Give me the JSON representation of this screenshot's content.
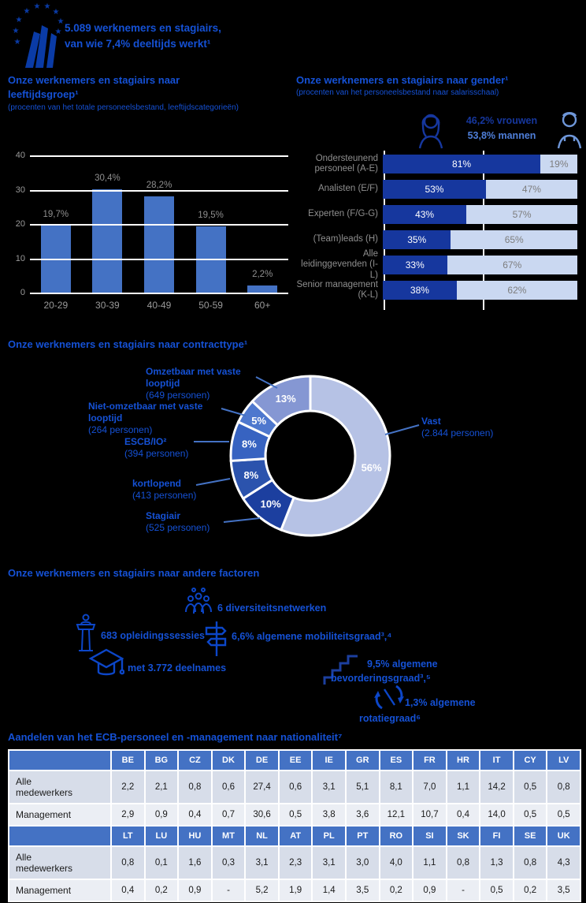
{
  "colors": {
    "accent_blue": "#1551D5",
    "bar_blue": "#4472C4",
    "dark_navy": "#16379E",
    "light_blue": "#CAD8F1",
    "icon_blue": "#0C46C8",
    "gray_label": "#8F8F8F",
    "table_header": "#4472C4"
  },
  "header": {
    "line1": "5.089 werknemers en stagiairs,",
    "line2": "van wie 7,4% deeltijds werkt¹"
  },
  "sections": {
    "age": {
      "title": "Onze werknemers en stagiairs naar leeftijdsgroep¹",
      "subtitle": "(procenten van het totale personeelsbestand, leeftijdscategorieën)"
    },
    "gender": {
      "title": "Onze werknemers en stagiairs naar gender¹",
      "subtitle": "(procenten van het personeelsbestand naar salarisschaal)",
      "women_total": "46,2% vrouwen",
      "men_total": "53,8% mannen"
    },
    "contract": {
      "title": "Onze werknemers en stagiairs naar contracttype¹"
    },
    "factors": {
      "title": "Onze werknemers en stagiairs naar andere factoren",
      "items": [
        {
          "id": "diversiteit",
          "text": "6 diversiteitsnetwerken"
        },
        {
          "id": "opleiding",
          "text": "683 opleidingssessies"
        },
        {
          "id": "mobiliteit",
          "text": "6,6% algemene mobiliteitsgraad³,⁴"
        },
        {
          "id": "deelnames",
          "text": "met 3.772 deelnames"
        },
        {
          "id": "bevordering",
          "line1": "9,5% algemene",
          "line2": "bevorderingsgraad³,⁵"
        },
        {
          "id": "rotatie",
          "line1": "1,3% algemene",
          "line2": "rotatiegraad⁶"
        }
      ]
    },
    "nationality": {
      "title": "Aandelen van het ECB-personeel en -management naar nationaliteit⁷"
    }
  },
  "chart_data": [
    {
      "type": "bar",
      "title": "Onze werknemers en stagiairs naar leeftijdsgroep¹",
      "categories": [
        "20-29",
        "30-39",
        "40-49",
        "50-59",
        "60+"
      ],
      "values": [
        19.7,
        30.4,
        28.2,
        19.5,
        2.2
      ],
      "labels": [
        "19,7%",
        "30,4%",
        "28,2%",
        "19,5%",
        "2,2%"
      ],
      "ylim": [
        0,
        40
      ],
      "yticks": [
        0,
        10,
        20,
        30,
        40
      ],
      "grid": true,
      "bar_color": "#4472C4"
    },
    {
      "type": "bar",
      "orientation": "horizontal-stacked",
      "title": "Onze werknemers en stagiairs naar gender¹",
      "categories": [
        "Ondersteunend personeel (A-E)",
        "Analisten (E/F)",
        "Experten (F/G-G)",
        "(Team)leads (H)",
        "Alle leidinggevenden (I-L)",
        "Senior management (K-L)"
      ],
      "series": [
        {
          "name": "vrouwen",
          "color": "#16379E",
          "values": [
            81,
            53,
            43,
            35,
            33,
            38
          ],
          "labels": [
            "81%",
            "53%",
            "43%",
            "35%",
            "33%",
            "38%"
          ]
        },
        {
          "name": "mannen",
          "color": "#CAD8F1",
          "values": [
            19,
            47,
            57,
            65,
            67,
            62
          ],
          "labels": [
            "19%",
            "47%",
            "57%",
            "65%",
            "67%",
            "62%"
          ]
        }
      ],
      "xlim": [
        0,
        100
      ]
    },
    {
      "type": "pie",
      "donut": true,
      "title": "Onze werknemers en stagiairs naar contracttype¹",
      "slices": [
        {
          "label": "Vast",
          "count": "(2.844 personen)",
          "value": 56,
          "pct": "56%",
          "color": "#B6C2E5"
        },
        {
          "label": "Stagiair",
          "count": "(525 personen)",
          "value": 10,
          "pct": "10%",
          "color": "#1C3F9F"
        },
        {
          "label": "kortlopend",
          "count": "(413 personen)",
          "value": 8,
          "pct": "8%",
          "color": "#2B53AD"
        },
        {
          "label": "ESCB/IO²",
          "count": "(394 personen)",
          "value": 8,
          "pct": "8%",
          "color": "#3763C1"
        },
        {
          "label": "Niet-omzetbaar met vaste looptijd",
          "count": "(264 personen)",
          "value": 5,
          "pct": "5%",
          "color": "#4E78CE"
        },
        {
          "label": "Omzetbaar met vaste looptijd",
          "count": "(649 personen)",
          "value": 13,
          "pct": "13%",
          "color": "#8597D3"
        }
      ]
    },
    {
      "type": "table",
      "title": "Aandelen van het ECB-personeel en -management naar nationaliteit⁷",
      "row_labels": [
        "Alle medewerkers",
        "Management"
      ],
      "blocks": [
        {
          "countries": [
            "BE",
            "BG",
            "CZ",
            "DK",
            "DE",
            "EE",
            "IE",
            "GR",
            "ES",
            "FR",
            "HR",
            "IT",
            "CY",
            "LV"
          ],
          "alle": [
            "2,2",
            "2,1",
            "0,8",
            "0,6",
            "27,4",
            "0,6",
            "3,1",
            "5,1",
            "8,1",
            "7,0",
            "1,1",
            "14,2",
            "0,5",
            "0,8"
          ],
          "management": [
            "2,9",
            "0,9",
            "0,4",
            "0,7",
            "30,6",
            "0,5",
            "3,8",
            "3,6",
            "12,1",
            "10,7",
            "0,4",
            "14,0",
            "0,5",
            "0,5"
          ]
        },
        {
          "countries": [
            "LT",
            "LU",
            "HU",
            "MT",
            "NL",
            "AT",
            "PL",
            "PT",
            "RO",
            "SI",
            "SK",
            "FI",
            "SE",
            "UK"
          ],
          "alle": [
            "0,8",
            "0,1",
            "1,6",
            "0,3",
            "3,1",
            "2,3",
            "3,1",
            "3,0",
            "4,0",
            "1,1",
            "0,8",
            "1,3",
            "0,8",
            "4,3"
          ],
          "management": [
            "0,4",
            "0,2",
            "0,9",
            "-",
            "5,2",
            "1,9",
            "1,4",
            "3,5",
            "0,2",
            "0,9",
            "-",
            "0,5",
            "0,2",
            "3,5"
          ]
        }
      ]
    }
  ]
}
